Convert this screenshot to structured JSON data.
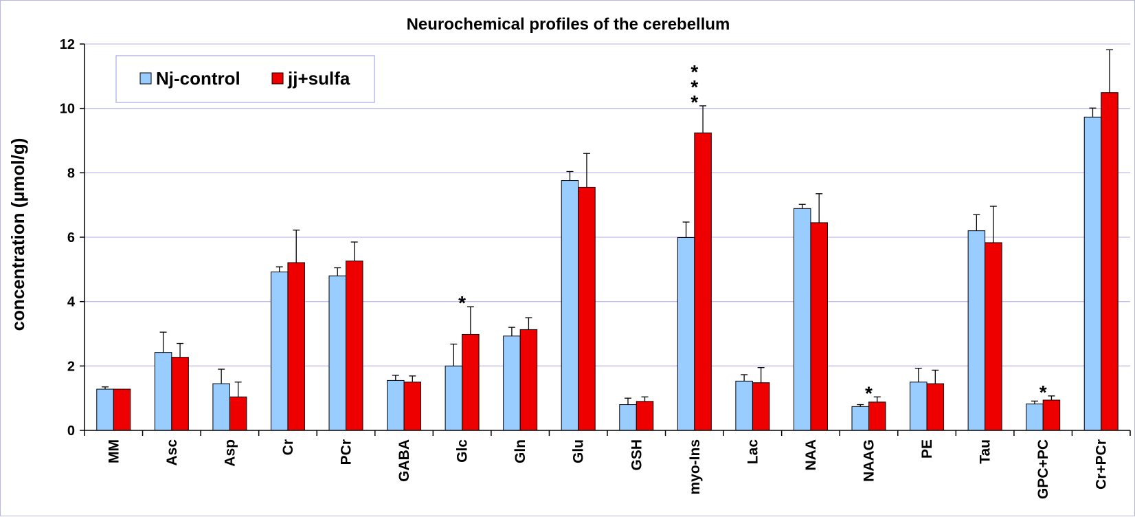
{
  "chart_data": {
    "type": "bar",
    "title": "Neurochemical profiles of the cerebellum",
    "ylabel": "concentration (µmol/g)",
    "xlabel": "",
    "ylim": [
      0,
      12
    ],
    "yticks": [
      0,
      2,
      4,
      6,
      8,
      10,
      12
    ],
    "grid": true,
    "legend_position": "top-left",
    "categories": [
      "MM",
      "Asc",
      "Asp",
      "Cr",
      "PCr",
      "GABA",
      "Glc",
      "Gln",
      "Glu",
      "GSH",
      "myo-Ins",
      "Lac",
      "NAA",
      "NAAG",
      "PE",
      "Tau",
      "GPC+PC",
      "Cr+PCr"
    ],
    "series": [
      {
        "name": "Nj-control",
        "color": "#99ccff",
        "values": [
          1.28,
          2.42,
          1.45,
          4.92,
          4.8,
          1.55,
          2.0,
          2.93,
          7.76,
          0.8,
          5.99,
          1.53,
          6.89,
          0.74,
          1.5,
          6.2,
          0.82,
          9.73
        ],
        "errors": [
          0.07,
          0.63,
          0.45,
          0.16,
          0.25,
          0.16,
          0.68,
          0.27,
          0.28,
          0.2,
          0.48,
          0.2,
          0.13,
          0.06,
          0.43,
          0.5,
          0.09,
          0.28
        ]
      },
      {
        "name": "jj+sulfa",
        "color": "#ee0000",
        "values": [
          1.28,
          2.27,
          1.04,
          5.21,
          5.26,
          1.5,
          2.98,
          3.13,
          7.55,
          0.9,
          9.24,
          1.48,
          6.45,
          0.88,
          1.45,
          5.83,
          0.94,
          10.49
        ],
        "errors": [
          0.0,
          0.43,
          0.46,
          1.01,
          0.59,
          0.19,
          0.86,
          0.37,
          1.05,
          0.14,
          0.84,
          0.47,
          0.9,
          0.16,
          0.42,
          1.13,
          0.13,
          1.33
        ]
      }
    ],
    "significance": [
      {
        "category": "Glc",
        "label": "*"
      },
      {
        "category": "myo-Ins",
        "label": "***"
      },
      {
        "category": "NAAG",
        "label": "*"
      },
      {
        "category": "GPC+PC",
        "label": "*"
      }
    ]
  }
}
